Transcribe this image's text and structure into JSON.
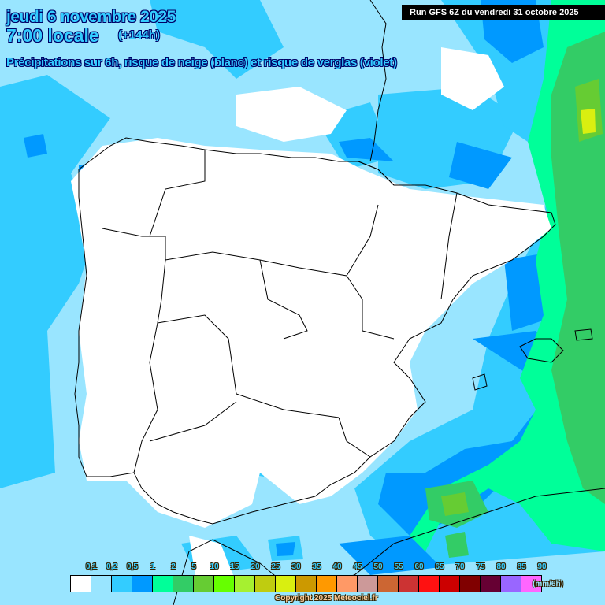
{
  "header": {
    "date": "jeudi 6 novembre 2025",
    "time": "7:00 locale",
    "lead": "(+144h)",
    "description": "Précipitations sur 6h, risque de neige (blanc) et risque de verglas (violet)",
    "run": "Run GFS 6Z du vendredi 31 octobre 2025"
  },
  "legend": {
    "unit": "(mm/6h)",
    "labels": [
      "0,1",
      "0,2",
      "0,5",
      "1",
      "2",
      "5",
      "10",
      "15",
      "20",
      "25",
      "30",
      "35",
      "40",
      "45",
      "50",
      "55",
      "60",
      "65",
      "70",
      "75",
      "80",
      "85",
      "90"
    ],
    "colors": [
      "#ffffff",
      "#99e5ff",
      "#33ccff",
      "#0099ff",
      "#00ff99",
      "#33cc66",
      "#66cc33",
      "#66ff00",
      "#a6f030",
      "#bfcc10",
      "#d9ef10",
      "#cc9900",
      "#ff9900",
      "#ff9966",
      "#cc9999",
      "#cc6633",
      "#cc3333",
      "#ff1111",
      "#cc0000",
      "#800000",
      "#660033",
      "#9966ff",
      "#ff66ff"
    ]
  },
  "copyright": "Copyright 2025 Meteociel.fr"
}
